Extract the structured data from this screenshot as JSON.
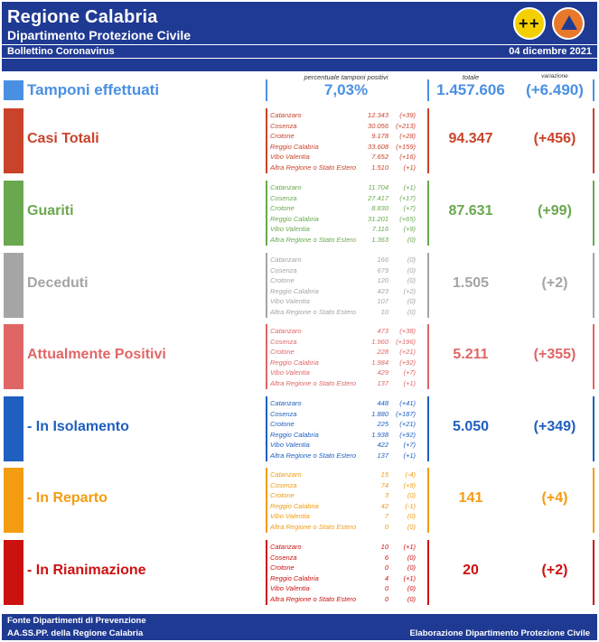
{
  "header": {
    "title": "Regione Calabria",
    "subtitle": "Dipartimento Protezione Civile",
    "bulletin": "Bollettino Coronavirus",
    "date": "04 dicembre 2021"
  },
  "columns": {
    "percent": "percentuale tamponi positivi",
    "total": "totale",
    "variation": "variazione"
  },
  "tamponi": {
    "label": "Tamponi effettuati",
    "percent": "7,03%",
    "total": "1.457.606",
    "variation": "(+6.490)",
    "color": "#4a90e2"
  },
  "sections": [
    {
      "label": "Casi Totali",
      "total": "94.347",
      "variation": "(+456)",
      "color": "#c9432b",
      "rows": [
        {
          "province": "Catanzaro",
          "value": "12.343",
          "delta": "(+39)"
        },
        {
          "province": "Cosenza",
          "value": "30.056",
          "delta": "(+213)"
        },
        {
          "province": "Crotone",
          "value": "9.178",
          "delta": "(+28)"
        },
        {
          "province": "Reggio Calabria",
          "value": "33.608",
          "delta": "(+159)"
        },
        {
          "province": "Vibo Valentia",
          "value": "7.652",
          "delta": "(+16)"
        },
        {
          "province": "Altra Regione o Stato Estero",
          "value": "1.510",
          "delta": "(+1)"
        }
      ]
    },
    {
      "label": "Guariti",
      "total": "87.631",
      "variation": "(+99)",
      "color": "#6aa84f",
      "rows": [
        {
          "province": "Catanzaro",
          "value": "11.704",
          "delta": "(+1)"
        },
        {
          "province": "Cosenza",
          "value": "27.417",
          "delta": "(+17)"
        },
        {
          "province": "Crotone",
          "value": "8.830",
          "delta": "(+7)"
        },
        {
          "province": "Reggio Calabria",
          "value": "31.201",
          "delta": "(+65)"
        },
        {
          "province": "Vibo Valentia",
          "value": "7.116",
          "delta": "(+9)"
        },
        {
          "province": "Altra Regione o Stato Estero",
          "value": "1.363",
          "delta": "(0)"
        }
      ]
    },
    {
      "label": "Deceduti",
      "total": "1.505",
      "variation": "(+2)",
      "color": "#a5a5a5",
      "rows": [
        {
          "province": "Catanzaro",
          "value": "166",
          "delta": "(0)"
        },
        {
          "province": "Cosenza",
          "value": "679",
          "delta": "(0)"
        },
        {
          "province": "Crotone",
          "value": "120",
          "delta": "(0)"
        },
        {
          "province": "Reggio Calabria",
          "value": "423",
          "delta": "(+2)"
        },
        {
          "province": "Vibo Valentia",
          "value": "107",
          "delta": "(0)"
        },
        {
          "province": "Altra Regione o Stato Estero",
          "value": "10",
          "delta": "(0)"
        }
      ]
    },
    {
      "label": "Attualmente Positivi",
      "total": "5.211",
      "variation": "(+355)",
      "color": "#e06666",
      "rows": [
        {
          "province": "Catanzaro",
          "value": "473",
          "delta": "(+38)"
        },
        {
          "province": "Cosenza",
          "value": "1.960",
          "delta": "(+196)"
        },
        {
          "province": "Crotone",
          "value": "228",
          "delta": "(+21)"
        },
        {
          "province": "Reggio Calabria",
          "value": "1.984",
          "delta": "(+92)"
        },
        {
          "province": "Vibo Valentia",
          "value": "429",
          "delta": "(+7)"
        },
        {
          "province": "Altra Regione o Stato Estero",
          "value": "137",
          "delta": "(+1)"
        }
      ]
    },
    {
      "label": "- In Isolamento",
      "total": "5.050",
      "variation": "(+349)",
      "color": "#1f5fbf",
      "rows": [
        {
          "province": "Catanzaro",
          "value": "448",
          "delta": "(+41)"
        },
        {
          "province": "Cosenza",
          "value": "1.880",
          "delta": "(+187)"
        },
        {
          "province": "Crotone",
          "value": "225",
          "delta": "(+21)"
        },
        {
          "province": "Reggio Calabria",
          "value": "1.938",
          "delta": "(+92)"
        },
        {
          "province": "Vibo Valentia",
          "value": "422",
          "delta": "(+7)"
        },
        {
          "province": "Altra Regione o Stato Estero",
          "value": "137",
          "delta": "(+1)"
        }
      ]
    },
    {
      "label": "- In Reparto",
      "total": "141",
      "variation": "(+4)",
      "color": "#f39c12",
      "rows": [
        {
          "province": "Catanzaro",
          "value": "15",
          "delta": "(-4)"
        },
        {
          "province": "Cosenza",
          "value": "74",
          "delta": "(+9)"
        },
        {
          "province": "Crotone",
          "value": "3",
          "delta": "(0)"
        },
        {
          "province": "Reggio Calabria",
          "value": "42",
          "delta": "(-1)"
        },
        {
          "province": "Vibo Valentia",
          "value": "7",
          "delta": "(0)"
        },
        {
          "province": "Altra Regione o Stato Estero",
          "value": "0",
          "delta": "(0)"
        }
      ]
    },
    {
      "label": "- In Rianimazione",
      "total": "20",
      "variation": "(+2)",
      "color": "#cc1111",
      "rows": [
        {
          "province": "Catanzaro",
          "value": "10",
          "delta": "(+1)"
        },
        {
          "province": "Cosenza",
          "value": "6",
          "delta": "(0)"
        },
        {
          "province": "Crotone",
          "value": "0",
          "delta": "(0)"
        },
        {
          "province": "Reggio Calabria",
          "value": "4",
          "delta": "(+1)"
        },
        {
          "province": "Vibo Valentia",
          "value": "0",
          "delta": "(0)"
        },
        {
          "province": "Altra Regione o Stato Estero",
          "value": "0",
          "delta": "(0)"
        }
      ]
    }
  ],
  "footer": {
    "line1": "Fonte Dipartimenti di Prevenzione",
    "line2": "AA.SS.PP.  della Regione Calabria",
    "credit": "Elaborazione Dipartimento Protezione Civile"
  },
  "icons": {
    "region_logo": "region-crest-icon",
    "civil_protection_logo": "protezione-civile-logo-icon"
  }
}
